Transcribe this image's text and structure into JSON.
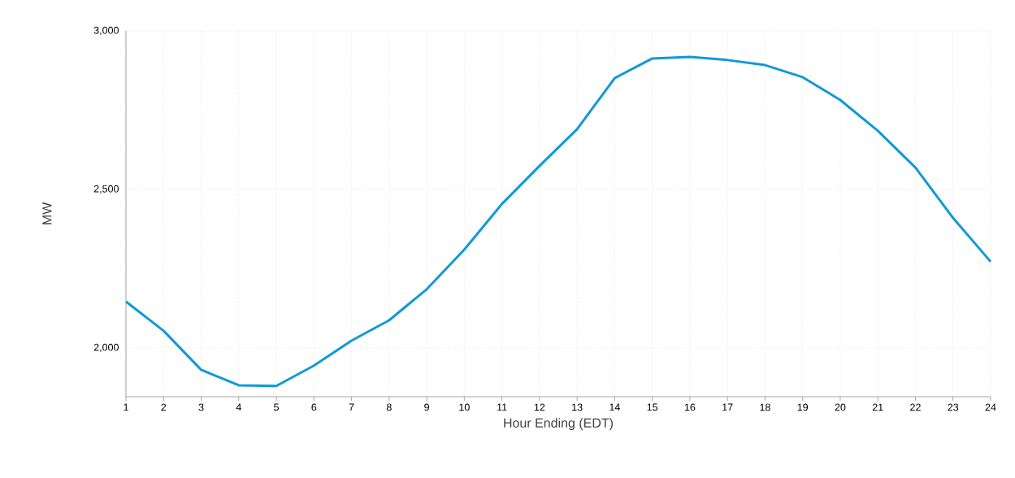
{
  "chart_data": {
    "type": "line",
    "xlabel": "Hour Ending (EDT)",
    "ylabel": "MW",
    "x": [
      1,
      2,
      3,
      4,
      5,
      6,
      7,
      8,
      9,
      10,
      11,
      12,
      13,
      14,
      15,
      16,
      17,
      18,
      19,
      20,
      21,
      22,
      23,
      24
    ],
    "series": [
      {
        "color": "#0f9ad6",
        "values": [
          2146,
          2054,
          1931,
          1882,
          1880,
          1944,
          2023,
          2087,
          2185,
          2310,
          2454,
          2574,
          2690,
          2851,
          2913,
          2918,
          2908,
          2892,
          2854,
          2782,
          2685,
          2569,
          2410,
          2272
        ]
      }
    ],
    "xlim": [
      1,
      24
    ],
    "xticks": [
      1,
      2,
      3,
      4,
      5,
      6,
      7,
      8,
      9,
      10,
      11,
      12,
      13,
      14,
      15,
      16,
      17,
      18,
      19,
      20,
      21,
      22,
      23,
      24
    ],
    "ylim": [
      1846,
      3000
    ],
    "yticks": [
      {
        "value": 2000,
        "label": "2,000"
      },
      {
        "value": 2500,
        "label": "2,500"
      },
      {
        "value": 3000,
        "label": "3,000"
      }
    ],
    "grid": true,
    "marker": "none",
    "line_style": "solid"
  }
}
